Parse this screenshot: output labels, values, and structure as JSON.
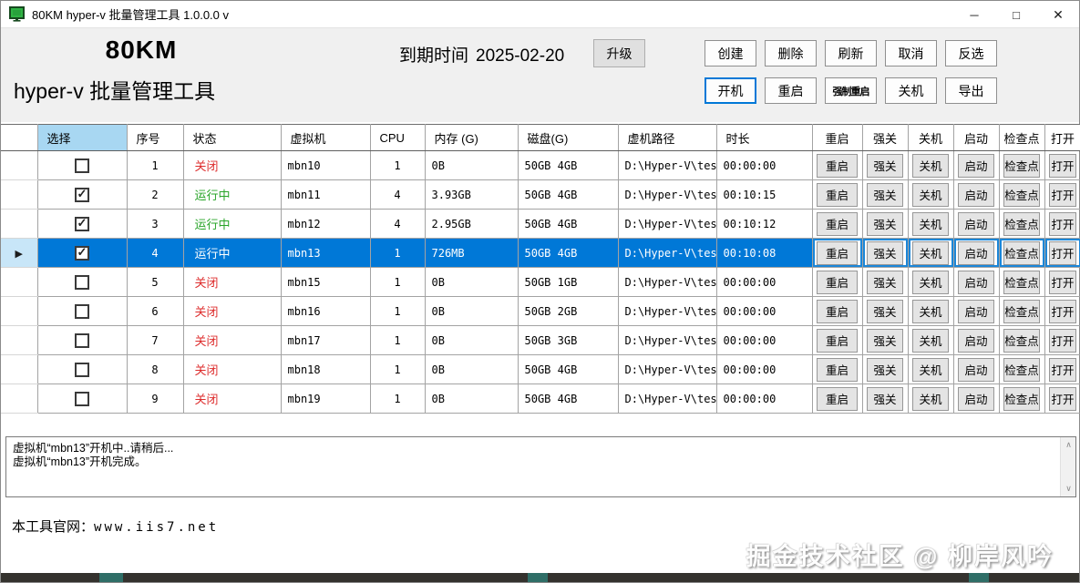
{
  "window": {
    "title": "80KM hyper-v 批量管理工具 1.0.0.0 v"
  },
  "icons": {
    "minimize": "─",
    "maximize": "□",
    "close": "✕",
    "row_arrow": "▶",
    "check": "✓",
    "scroll_up": "∧",
    "scroll_down": "∨"
  },
  "colors": {
    "selection_blue": "#0078d7",
    "status_running_green": "#28a428",
    "status_off_red": "#dd2c2c",
    "selected_column_header_bg": "#a8d7f2",
    "app_icon_green": "#2fb344"
  },
  "header": {
    "brand_top": "80KM",
    "brand_bottom": "hyper-v 批量管理工具",
    "expiry_label": "到期时间",
    "expiry_date": "2025-02-20",
    "upgrade": {
      "label": "升级",
      "name": "upgrade"
    }
  },
  "toolbar": {
    "row1": [
      {
        "label": "创建",
        "name": "create"
      },
      {
        "label": "删除",
        "name": "delete"
      },
      {
        "label": "刷新",
        "name": "refresh"
      },
      {
        "label": "取消",
        "name": "cancel"
      },
      {
        "label": "反选",
        "name": "invert-selection"
      }
    ],
    "row2": [
      {
        "label": "开机",
        "name": "power-on",
        "focused": true
      },
      {
        "label": "重启",
        "name": "restart"
      },
      {
        "label": "强制重启",
        "name": "force-restart",
        "condensed": true
      },
      {
        "label": "关机",
        "name": "shutdown"
      },
      {
        "label": "导出",
        "name": "export"
      }
    ]
  },
  "table": {
    "columns": [
      "选择",
      "序号",
      "状态",
      "虚拟机",
      "CPU",
      "内存 (G)",
      "磁盘(G)",
      "虚机路径",
      "时长",
      "重启",
      "强关",
      "关机",
      "启动",
      "检查点",
      "打开"
    ],
    "action_labels": [
      "重启",
      "强关",
      "关机",
      "启动",
      "检查点",
      "打开"
    ],
    "action_names": [
      "restart",
      "force-off",
      "shutdown",
      "start",
      "checkpoint",
      "open"
    ],
    "rows": [
      {
        "checked": false,
        "num": "1",
        "status": "关闭",
        "running": false,
        "vm": "mbn10",
        "cpu": "1",
        "mem": "0B",
        "disk": "50GB 4GB",
        "path": "D:\\Hyper-V\\tes...",
        "time": "00:00:00",
        "selected": false
      },
      {
        "checked": true,
        "num": "2",
        "status": "运行中",
        "running": true,
        "vm": "mbn11",
        "cpu": "4",
        "mem": "3.93GB",
        "disk": "50GB 4GB",
        "path": "D:\\Hyper-V\\tes...",
        "time": "00:10:15",
        "selected": false
      },
      {
        "checked": true,
        "num": "3",
        "status": "运行中",
        "running": true,
        "vm": "mbn12",
        "cpu": "4",
        "mem": "2.95GB",
        "disk": "50GB 4GB",
        "path": "D:\\Hyper-V\\tes...",
        "time": "00:10:12",
        "selected": false
      },
      {
        "checked": true,
        "num": "4",
        "status": "运行中",
        "running": true,
        "vm": "mbn13",
        "cpu": "1",
        "mem": "726MB",
        "disk": "50GB 4GB",
        "path": "D:\\Hyper-V\\tes...",
        "time": "00:10:08",
        "selected": true
      },
      {
        "checked": false,
        "num": "5",
        "status": "关闭",
        "running": false,
        "vm": "mbn15",
        "cpu": "1",
        "mem": "0B",
        "disk": "50GB 1GB",
        "path": "D:\\Hyper-V\\tes...",
        "time": "00:00:00",
        "selected": false
      },
      {
        "checked": false,
        "num": "6",
        "status": "关闭",
        "running": false,
        "vm": "mbn16",
        "cpu": "1",
        "mem": "0B",
        "disk": "50GB 2GB",
        "path": "D:\\Hyper-V\\tes...",
        "time": "00:00:00",
        "selected": false
      },
      {
        "checked": false,
        "num": "7",
        "status": "关闭",
        "running": false,
        "vm": "mbn17",
        "cpu": "1",
        "mem": "0B",
        "disk": "50GB 3GB",
        "path": "D:\\Hyper-V\\tes...",
        "time": "00:00:00",
        "selected": false
      },
      {
        "checked": false,
        "num": "8",
        "status": "关闭",
        "running": false,
        "vm": "mbn18",
        "cpu": "1",
        "mem": "0B",
        "disk": "50GB 4GB",
        "path": "D:\\Hyper-V\\tes...",
        "time": "00:00:00",
        "selected": false
      },
      {
        "checked": false,
        "num": "9",
        "status": "关闭",
        "running": false,
        "vm": "mbn19",
        "cpu": "1",
        "mem": "0B",
        "disk": "50GB 4GB",
        "path": "D:\\Hyper-V\\tes...",
        "time": "00:00:00",
        "selected": false
      }
    ]
  },
  "log": {
    "lines": [
      "虚拟机“mbn13”开机中..请稍后...",
      "虚拟机“mbn13”开机完成。"
    ]
  },
  "footer": {
    "site_label": "本工具官网：",
    "site_url": "www.iis7.net",
    "watermark": "掘金技术社区 @ 柳岸风吟"
  }
}
